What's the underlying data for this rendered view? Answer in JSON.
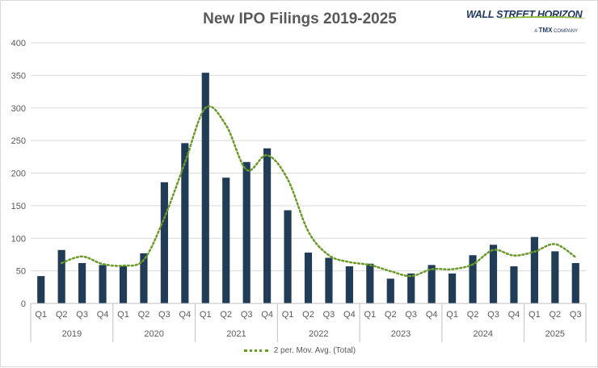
{
  "title": "New IPO Filings 2019-2025",
  "logo": {
    "name": "WALL STREET HORIZON",
    "tagline_prefix": "A",
    "tagline_brand": "TMX",
    "tagline_suffix": "COMPANY"
  },
  "colors": {
    "bar": "#203c56",
    "moving_avg": "#6a9a28",
    "grid": "#d9d9d9",
    "axis_text": "#595959"
  },
  "chart_data": {
    "type": "bar",
    "title": "New IPO Filings 2019-2025",
    "xlabel": "",
    "ylabel": "",
    "ylim": [
      0,
      400
    ],
    "yticks": [
      0,
      50,
      100,
      150,
      200,
      250,
      300,
      350,
      400
    ],
    "grid": true,
    "legend_position": "bottom",
    "categories": [
      "Q1",
      "Q2",
      "Q3",
      "Q4",
      "Q1",
      "Q2",
      "Q3",
      "Q4",
      "Q1",
      "Q2",
      "Q3",
      "Q4",
      "Q1",
      "Q2",
      "Q3",
      "Q4",
      "Q1",
      "Q2",
      "Q3",
      "Q4",
      "Q1",
      "Q2",
      "Q3",
      "Q4",
      "Q1",
      "Q2",
      "Q3"
    ],
    "year_groups": [
      {
        "label": "2019",
        "count": 4
      },
      {
        "label": "2020",
        "count": 4
      },
      {
        "label": "2021",
        "count": 4
      },
      {
        "label": "2022",
        "count": 4
      },
      {
        "label": "2023",
        "count": 4
      },
      {
        "label": "2024",
        "count": 4
      },
      {
        "label": "2025",
        "count": 3
      }
    ],
    "values": [
      42,
      82,
      62,
      59,
      57,
      77,
      186,
      246,
      354,
      193,
      217,
      238,
      143,
      78,
      70,
      57,
      61,
      38,
      46,
      59,
      46,
      74,
      90,
      57,
      102,
      80,
      62
    ],
    "trendline": {
      "name": "2 per. Mov. Avg. (Total)",
      "type": "moving_average",
      "period": 2
    }
  }
}
